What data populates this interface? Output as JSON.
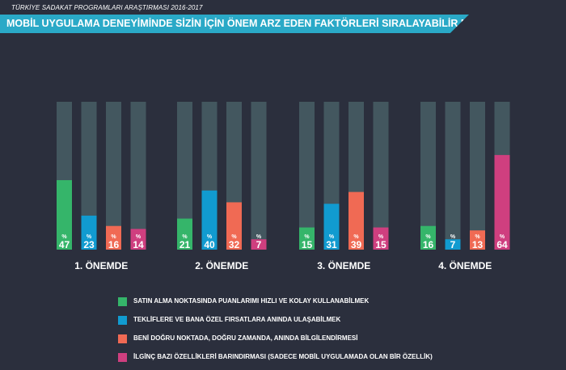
{
  "header": {
    "subtitle": "TÜRKİYE SADAKAT PROGRAMLARI ARAŞTIRMASI 2016-2017",
    "title": "MOBİL UYGULAMA DENEYİMİNDE SİZİN İÇİN ÖNEM ARZ EDEN FAKTÖRLERİ SIRALAYABİLİR MİSİNİZ?"
  },
  "colors": {
    "background": "#2b2f3d",
    "bar_track": "#43575f",
    "title_band": "#2aa9c7",
    "series": [
      "#35b56a",
      "#119bd0",
      "#f06a54",
      "#cf3f7f"
    ]
  },
  "chart_data": {
    "type": "bar",
    "categories": [
      "1. ÖNEMDE",
      "2. ÖNEMDE",
      "3. ÖNEMDE",
      "4. ÖNEMDE"
    ],
    "ylim": [
      0,
      100
    ],
    "value_prefix": "%",
    "series": [
      {
        "name": "SATIN ALMA NOKTASINDA PUANLARIMI HIZLI VE KOLAY KULLANABİLMEK",
        "values": [
          47,
          21,
          15,
          16
        ]
      },
      {
        "name": "TEKLİFLERE VE BANA ÖZEL FIRSATLARA ANINDA ULAŞABİLMEK",
        "values": [
          23,
          40,
          31,
          7
        ]
      },
      {
        "name": "BENİ DOĞRU NOKTADA, DOĞRU ZAMANDA, ANINDA BİLGİLENDİRMESİ",
        "values": [
          16,
          32,
          39,
          13
        ]
      },
      {
        "name": "İLGİNÇ BAZI ÖZELLİKLERİ BARINDIRMASI (SADECE MOBİL UYGULAMADA OLAN BİR ÖZELLİK)",
        "values": [
          14,
          7,
          15,
          64
        ]
      }
    ]
  }
}
